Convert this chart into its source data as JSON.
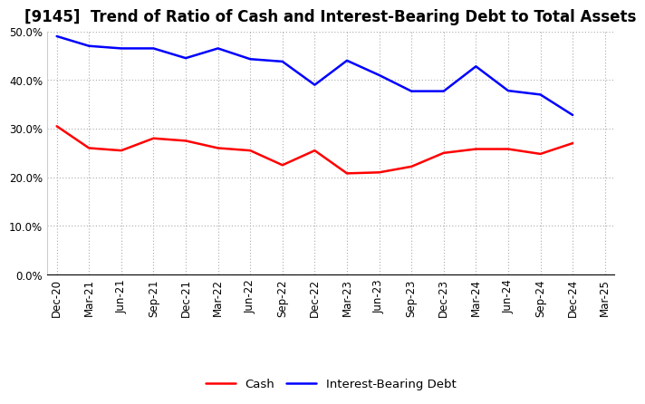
{
  "title": "[9145]  Trend of Ratio of Cash and Interest-Bearing Debt to Total Assets",
  "x_labels": [
    "Dec-20",
    "Mar-21",
    "Jun-21",
    "Sep-21",
    "Dec-21",
    "Mar-22",
    "Jun-22",
    "Sep-22",
    "Dec-22",
    "Mar-23",
    "Jun-23",
    "Sep-23",
    "Dec-23",
    "Mar-24",
    "Jun-24",
    "Sep-24",
    "Dec-24",
    "Mar-25"
  ],
  "cash": [
    0.305,
    0.26,
    0.255,
    0.28,
    0.275,
    0.26,
    0.255,
    0.225,
    0.255,
    0.208,
    0.21,
    0.222,
    0.25,
    0.258,
    0.258,
    0.248,
    0.27,
    null
  ],
  "ibd": [
    0.49,
    0.47,
    0.465,
    0.465,
    0.445,
    0.465,
    0.443,
    0.438,
    0.39,
    0.44,
    0.41,
    0.377,
    0.377,
    0.428,
    0.378,
    0.37,
    0.328,
    null
  ],
  "cash_color": "#ff0000",
  "ibd_color": "#0000ff",
  "bg_color": "#ffffff",
  "plot_bg_color": "#ffffff",
  "grid_color": "#aaaaaa",
  "ylim": [
    0.0,
    0.5
  ],
  "yticks": [
    0.0,
    0.1,
    0.2,
    0.3,
    0.4,
    0.5
  ],
  "legend_labels": [
    "Cash",
    "Interest-Bearing Debt"
  ],
  "title_fontsize": 12,
  "tick_fontsize": 8.5,
  "legend_fontsize": 9.5
}
